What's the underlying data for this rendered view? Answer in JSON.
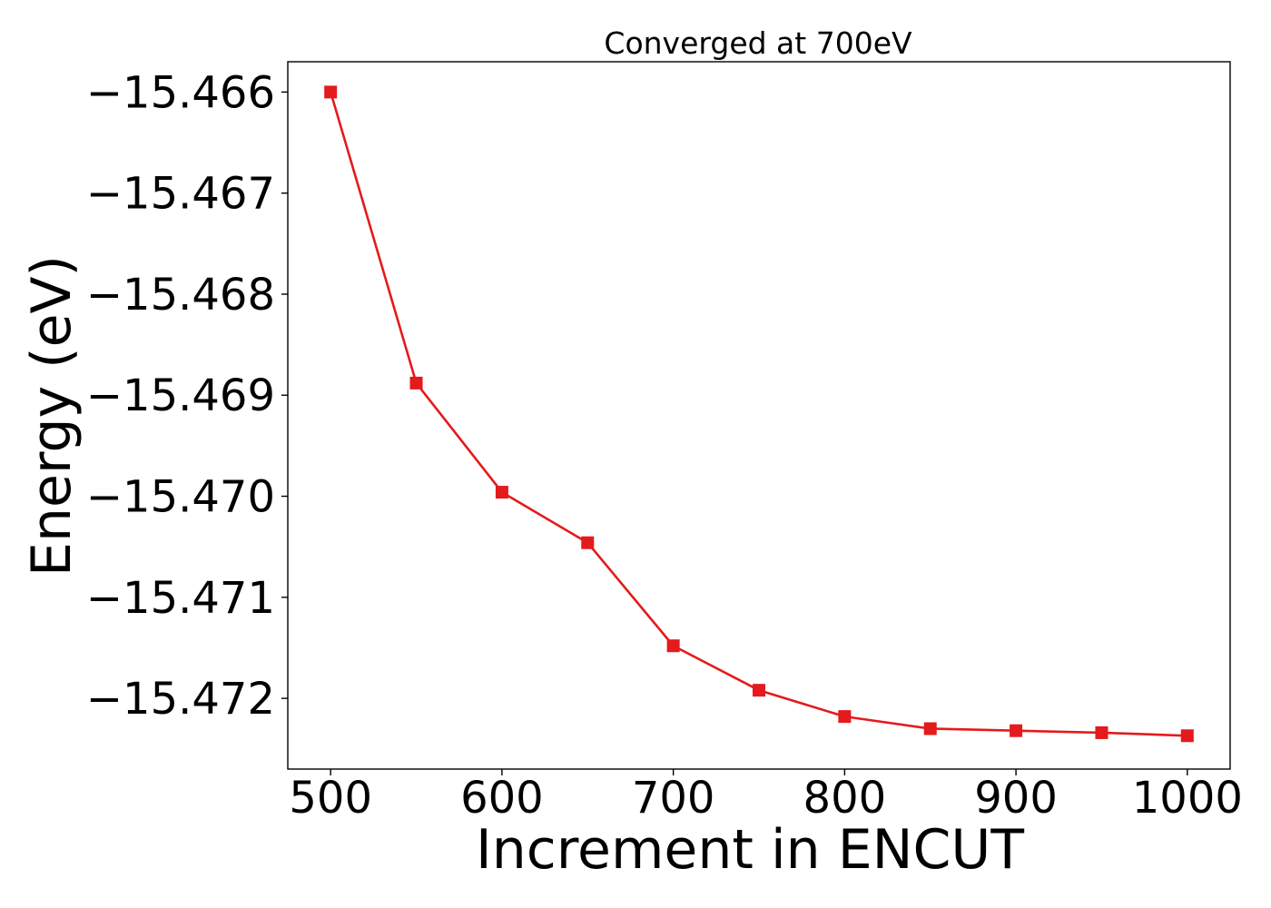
{
  "chart_data": {
    "type": "line",
    "title": "Converged at 700eV",
    "xlabel": "Increment in ENCUT",
    "ylabel": "Energy (eV)",
    "xlim": [
      475,
      1025
    ],
    "ylim": [
      -15.4727,
      -15.4657
    ],
    "xticks": [
      500,
      600,
      700,
      800,
      900,
      1000
    ],
    "xtick_labels": [
      "500",
      "600",
      "700",
      "800",
      "900",
      "1000"
    ],
    "yticks": [
      -15.466,
      -15.467,
      -15.468,
      -15.469,
      -15.47,
      -15.471,
      -15.472
    ],
    "ytick_labels": [
      "−15.466",
      "−15.467",
      "−15.468",
      "−15.469",
      "−15.470",
      "−15.471",
      "−15.472"
    ],
    "grid": false,
    "legend": "none",
    "series": [
      {
        "color": "#e41a1c",
        "marker": "square",
        "x": [
          500,
          550,
          600,
          650,
          700,
          750,
          800,
          850,
          900,
          950,
          1000
        ],
        "y": [
          -15.466,
          -15.46888,
          -15.46996,
          -15.47046,
          -15.47148,
          -15.47192,
          -15.47218,
          -15.4723,
          -15.47232,
          -15.47234,
          -15.47237
        ]
      }
    ]
  }
}
